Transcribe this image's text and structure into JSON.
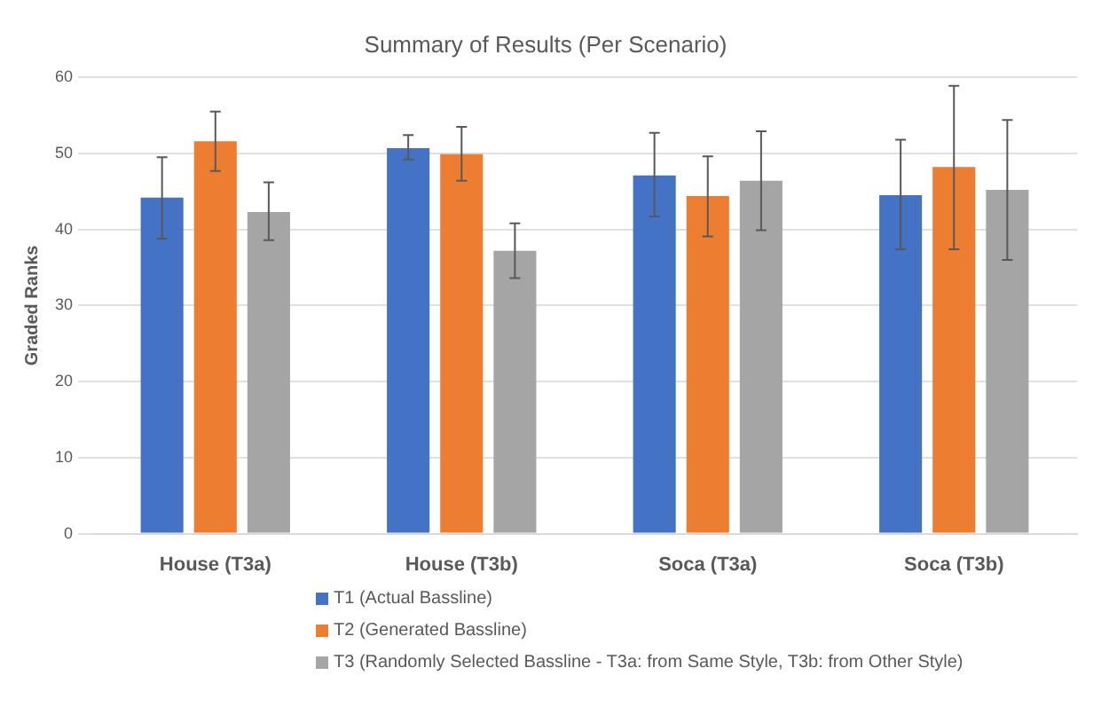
{
  "chart_data": {
    "type": "bar",
    "title": "Summary of Results (Per Scenario)",
    "ylabel": "Graded Ranks",
    "categories": [
      "House (T3a)",
      "House (T3b)",
      "Soca (T3a)",
      "Soca (T3b)"
    ],
    "series": [
      {
        "name": "T1 (Actual Bassline)",
        "color": "#4472c4",
        "values": [
          44.2,
          50.7,
          47.1,
          44.5
        ],
        "errors": [
          [
            38.8,
            49.5
          ],
          [
            49.2,
            52.4
          ],
          [
            41.7,
            52.7
          ],
          [
            37.4,
            51.8
          ]
        ]
      },
      {
        "name": "T2 (Generated Bassline)",
        "color": "#ed7d31",
        "values": [
          51.6,
          49.9,
          44.4,
          48.2
        ],
        "errors": [
          [
            47.7,
            55.5
          ],
          [
            46.4,
            53.5
          ],
          [
            39.1,
            49.6
          ],
          [
            37.4,
            58.9
          ]
        ]
      },
      {
        "name": "T3 (Randomly Selected Bassline - T3a: from Same Style, T3b: from Other Style)",
        "color": "#a5a5a5",
        "values": [
          42.3,
          37.2,
          46.4,
          45.2
        ],
        "errors": [
          [
            38.6,
            46.2
          ],
          [
            33.6,
            40.8
          ],
          [
            39.9,
            52.9
          ],
          [
            36.0,
            54.4
          ]
        ]
      }
    ],
    "ylim": [
      0,
      60
    ],
    "yticks": [
      0,
      10,
      20,
      30,
      40,
      50,
      60
    ],
    "grid": "y",
    "legend": "bottom"
  }
}
